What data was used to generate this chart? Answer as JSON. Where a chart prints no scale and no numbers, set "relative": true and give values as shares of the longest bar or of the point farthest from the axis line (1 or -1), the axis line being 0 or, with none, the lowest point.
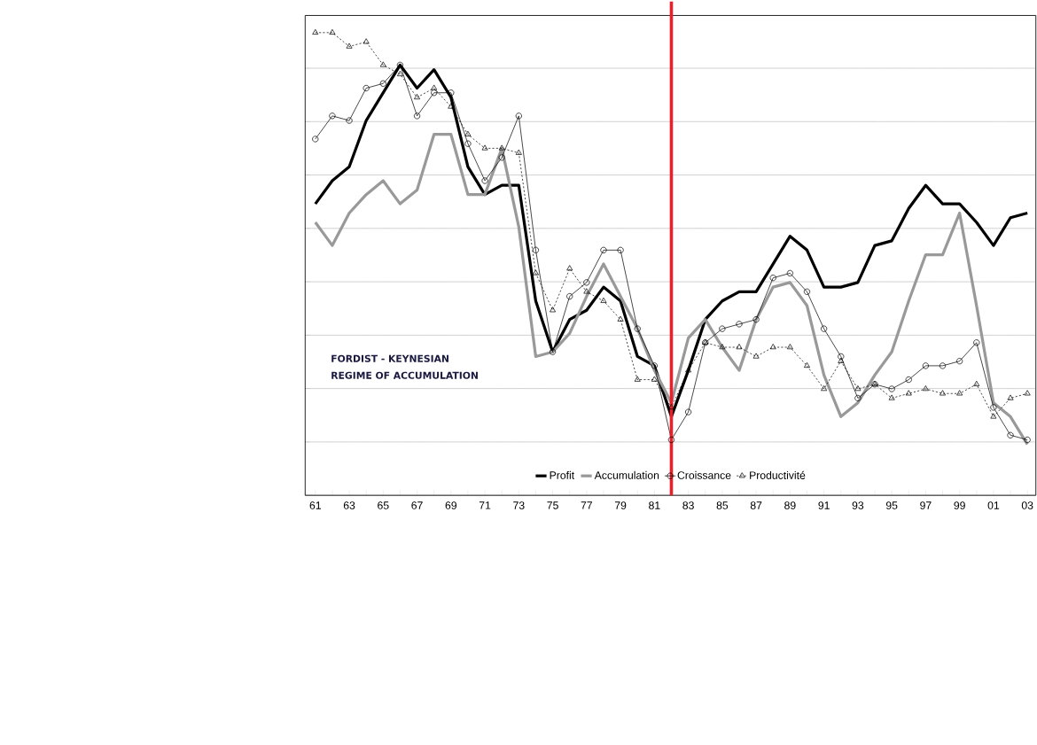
{
  "chart_data": {
    "type": "line",
    "relative": true,
    "grid": "y",
    "legend": "bottom",
    "x": [
      1961,
      1962,
      1963,
      1964,
      1965,
      1966,
      1967,
      1968,
      1969,
      1970,
      1971,
      1972,
      1973,
      1974,
      1975,
      1976,
      1977,
      1978,
      1979,
      1980,
      1981,
      1982,
      1983,
      1984,
      1985,
      1986,
      1987,
      1988,
      1989,
      1990,
      1991,
      1992,
      1993,
      1994,
      1995,
      1996,
      1997,
      1998,
      1999,
      2000,
      2001,
      2002,
      2003
    ],
    "xlim": [
      1960.4,
      2003.5
    ],
    "xticks": [
      {
        "value": 1961,
        "label": "61"
      },
      {
        "value": 1962,
        "label": null
      },
      {
        "value": 1963,
        "label": "63"
      },
      {
        "value": 1964,
        "label": null
      },
      {
        "value": 1965,
        "label": "65"
      },
      {
        "value": 1966,
        "label": null
      },
      {
        "value": 1967,
        "label": "67"
      },
      {
        "value": 1968,
        "label": null
      },
      {
        "value": 1969,
        "label": "69"
      },
      {
        "value": 1970,
        "label": null
      },
      {
        "value": 1971,
        "label": "71"
      },
      {
        "value": 1972,
        "label": null
      },
      {
        "value": 1973,
        "label": "73"
      },
      {
        "value": 1974,
        "label": null
      },
      {
        "value": 1975,
        "label": "75"
      },
      {
        "value": 1976,
        "label": null
      },
      {
        "value": 1977,
        "label": "77"
      },
      {
        "value": 1978,
        "label": null
      },
      {
        "value": 1979,
        "label": "79"
      },
      {
        "value": 1980,
        "label": null
      },
      {
        "value": 1981,
        "label": "81"
      },
      {
        "value": 1982,
        "label": null
      },
      {
        "value": 1983,
        "label": "83"
      },
      {
        "value": 1984,
        "label": null
      },
      {
        "value": 1985,
        "label": "85"
      },
      {
        "value": 1986,
        "label": null
      },
      {
        "value": 1987,
        "label": "87"
      },
      {
        "value": 1988,
        "label": null
      },
      {
        "value": 1989,
        "label": "89"
      },
      {
        "value": 1990,
        "label": null
      },
      {
        "value": 1991,
        "label": "91"
      },
      {
        "value": 1992,
        "label": null
      },
      {
        "value": 1993,
        "label": "93"
      },
      {
        "value": 1994,
        "label": null
      },
      {
        "value": 1995,
        "label": "95"
      },
      {
        "value": 1996,
        "label": null
      },
      {
        "value": 1997,
        "label": "97"
      },
      {
        "value": 1998,
        "label": null
      },
      {
        "value": 1999,
        "label": "99"
      },
      {
        "value": 2000,
        "label": null
      },
      {
        "value": 2001,
        "label": "01"
      },
      {
        "value": 2002,
        "label": null
      },
      {
        "value": 2003,
        "label": "03"
      }
    ],
    "series": [
      {
        "name": "Profit",
        "color": "#000000",
        "marker": "none",
        "line_style": "solid",
        "values": [
          0.63,
          0.68,
          0.71,
          0.81,
          0.87,
          0.93,
          0.88,
          0.92,
          0.86,
          0.71,
          0.65,
          0.67,
          0.67,
          0.42,
          0.31,
          0.38,
          0.4,
          0.45,
          0.42,
          0.3,
          0.28,
          0.17,
          0.27,
          0.38,
          0.42,
          0.44,
          0.44,
          0.5,
          0.56,
          0.53,
          0.45,
          0.45,
          0.46,
          0.54,
          0.55,
          0.62,
          0.67,
          0.63,
          0.63,
          0.59,
          0.54,
          0.6,
          0.61
        ]
      },
      {
        "name": "Accumulation",
        "color": "#999999",
        "marker": "none",
        "line_style": "solid",
        "values": [
          0.59,
          0.54,
          0.61,
          0.65,
          0.68,
          0.63,
          0.66,
          0.78,
          0.78,
          0.65,
          0.65,
          0.75,
          0.58,
          0.3,
          0.31,
          0.35,
          0.43,
          0.5,
          0.43,
          0.36,
          0.27,
          0.2,
          0.34,
          0.38,
          0.32,
          0.27,
          0.38,
          0.45,
          0.46,
          0.41,
          0.26,
          0.17,
          0.2,
          0.26,
          0.31,
          0.42,
          0.52,
          0.52,
          0.61,
          0.41,
          0.2,
          0.17,
          0.11
        ]
      },
      {
        "name": "Croissance",
        "color": "#000000",
        "marker": "circle",
        "line_style": "solid",
        "values": [
          0.77,
          0.82,
          0.81,
          0.88,
          0.89,
          0.93,
          0.82,
          0.87,
          0.87,
          0.76,
          0.68,
          0.73,
          0.82,
          0.53,
          0.31,
          0.43,
          0.46,
          0.53,
          0.53,
          0.36,
          0.28,
          0.12,
          0.18,
          0.33,
          0.36,
          0.37,
          0.38,
          0.47,
          0.48,
          0.44,
          0.36,
          0.3,
          0.21,
          0.24,
          0.23,
          0.25,
          0.28,
          0.28,
          0.29,
          0.33,
          0.19,
          0.13,
          0.12
        ]
      },
      {
        "name": "Productivité",
        "color": "#000000",
        "marker": "triangle",
        "line_style": "dashed",
        "values": [
          1.0,
          1.0,
          0.97,
          0.98,
          0.93,
          0.91,
          0.86,
          0.88,
          0.84,
          0.78,
          0.75,
          0.75,
          0.74,
          0.48,
          0.4,
          0.49,
          0.44,
          0.42,
          0.38,
          0.25,
          0.25,
          0.19,
          0.27,
          0.33,
          0.32,
          0.32,
          0.3,
          0.32,
          0.32,
          0.28,
          0.23,
          0.29,
          0.23,
          0.24,
          0.21,
          0.22,
          0.23,
          0.22,
          0.22,
          0.24,
          0.17,
          0.21,
          0.22
        ]
      }
    ],
    "ref_lines": [
      {
        "axis": "x",
        "value": 1982,
        "color": "#e8202a"
      }
    ],
    "annotations": [
      "FORDIST - KEYNESIAN",
      "REGIME OF ACCUMULATION"
    ]
  }
}
